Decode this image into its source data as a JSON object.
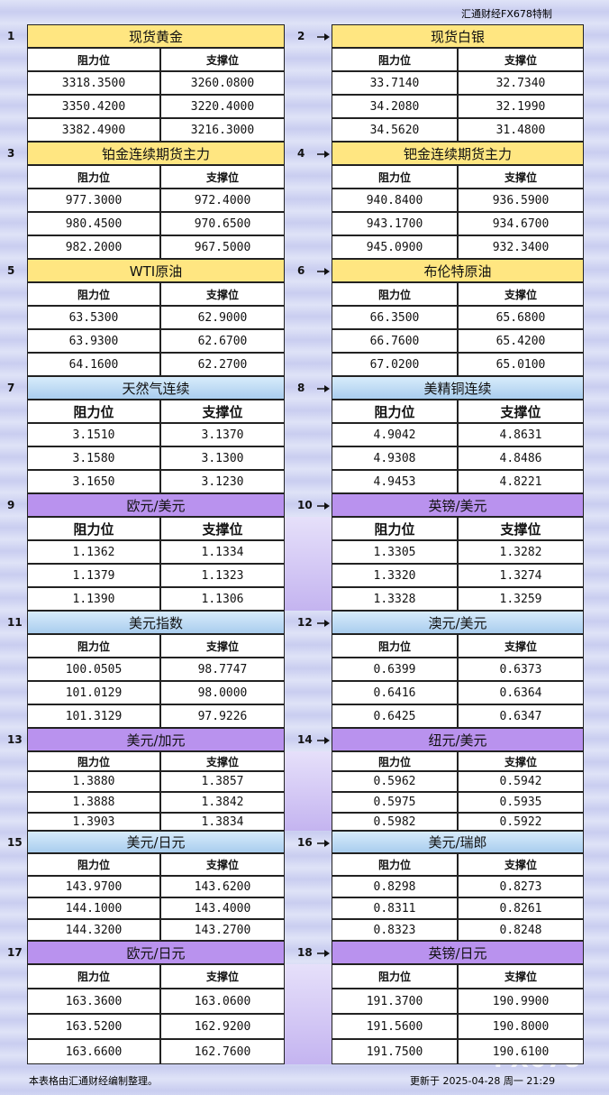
{
  "header": {
    "title": "汇通财经FX678特制"
  },
  "blocks": [
    {
      "number": "1",
      "title": "现货黄金",
      "headers": [
        "阻力位",
        "支撑位"
      ],
      "rows": [
        [
          "3318.3500",
          "3260.0800"
        ],
        [
          "3350.4200",
          "3220.4000"
        ],
        [
          "3382.4900",
          "3216.3000"
        ]
      ]
    },
    {
      "number": "2",
      "title": "现货白银",
      "headers": [
        "阻力位",
        "支撑位"
      ],
      "rows": [
        [
          "33.7140",
          "32.7340"
        ],
        [
          "34.2080",
          "32.1990"
        ],
        [
          "34.5620",
          "31.4800"
        ]
      ]
    },
    {
      "number": "3",
      "title": "铂金连续期货主力",
      "headers": [
        "阻力位",
        "支撑位"
      ],
      "rows": [
        [
          "977.3000",
          "972.4000"
        ],
        [
          "980.4500",
          "970.6500"
        ],
        [
          "982.2000",
          "967.5000"
        ]
      ]
    },
    {
      "number": "4",
      "title": "钯金连续期货主力",
      "headers": [
        "阻力位",
        "支撑位"
      ],
      "rows": [
        [
          "940.8400",
          "936.5900"
        ],
        [
          "943.1700",
          "934.6700"
        ],
        [
          "945.0900",
          "932.3400"
        ]
      ]
    },
    {
      "number": "5",
      "title": "WTI原油",
      "headers": [
        "阻力位",
        "支撑位"
      ],
      "rows": [
        [
          "63.5300",
          "62.9000"
        ],
        [
          "63.9300",
          "62.6700"
        ],
        [
          "64.1600",
          "62.2700"
        ]
      ]
    },
    {
      "number": "6",
      "title": "布伦特原油",
      "headers": [
        "阻力位",
        "支撑位"
      ],
      "rows": [
        [
          "66.3500",
          "65.6800"
        ],
        [
          "66.7600",
          "65.4200"
        ],
        [
          "67.0200",
          "65.0100"
        ]
      ]
    },
    {
      "number": "7",
      "title": "天然气连续",
      "headers": [
        "阻力位",
        "支撑位"
      ],
      "rows": [
        [
          "3.1510",
          "3.1370"
        ],
        [
          "3.1580",
          "3.1300"
        ],
        [
          "3.1650",
          "3.1230"
        ]
      ]
    },
    {
      "number": "8",
      "title": "美精铜连续",
      "headers": [
        "阻力位",
        "支撑位"
      ],
      "rows": [
        [
          "4.9042",
          "4.8631"
        ],
        [
          "4.9308",
          "4.8486"
        ],
        [
          "4.9453",
          "4.8221"
        ]
      ]
    },
    {
      "number": "9",
      "title": "欧元/美元",
      "headers": [
        "阻力位",
        "支撑位"
      ],
      "rows": [
        [
          "1.1362",
          "1.1334"
        ],
        [
          "1.1379",
          "1.1323"
        ],
        [
          "1.1390",
          "1.1306"
        ]
      ]
    },
    {
      "number": "10",
      "title": "英镑/美元",
      "headers": [
        "阻力位",
        "支撑位"
      ],
      "rows": [
        [
          "1.3305",
          "1.3282"
        ],
        [
          "1.3320",
          "1.3274"
        ],
        [
          "1.3328",
          "1.3259"
        ]
      ]
    },
    {
      "number": "11",
      "title": "美元指数",
      "headers": [
        "阻力位",
        "支撑位"
      ],
      "rows": [
        [
          "100.0505",
          "98.7747"
        ],
        [
          "101.0129",
          "98.0000"
        ],
        [
          "101.3129",
          "97.9226"
        ]
      ]
    },
    {
      "number": "12",
      "title": "澳元/美元",
      "headers": [
        "阻力位",
        "支撑位"
      ],
      "rows": [
        [
          "0.6399",
          "0.6373"
        ],
        [
          "0.6416",
          "0.6364"
        ],
        [
          "0.6425",
          "0.6347"
        ]
      ]
    },
    {
      "number": "13",
      "title": "美元/加元",
      "headers": [
        "阻力位",
        "支撑位"
      ],
      "rows": [
        [
          "1.3880",
          "1.3857"
        ],
        [
          "1.3888",
          "1.3842"
        ],
        [
          "1.3903",
          "1.3834"
        ]
      ]
    },
    {
      "number": "14",
      "title": "纽元/美元",
      "headers": [
        "阻力位",
        "支撑位"
      ],
      "rows": [
        [
          "0.5962",
          "0.5942"
        ],
        [
          "0.5975",
          "0.5935"
        ],
        [
          "0.5982",
          "0.5922"
        ]
      ]
    },
    {
      "number": "15",
      "title": "美元/日元",
      "headers": [
        "阻力位",
        "支撑位"
      ],
      "rows": [
        [
          "143.9700",
          "143.6200"
        ],
        [
          "144.1000",
          "143.4000"
        ],
        [
          "144.3200",
          "143.2700"
        ]
      ]
    },
    {
      "number": "16",
      "title": "美元/瑞郎",
      "headers": [
        "阻力位",
        "支撑位"
      ],
      "rows": [
        [
          "0.8298",
          "0.8273"
        ],
        [
          "0.8311",
          "0.8261"
        ],
        [
          "0.8323",
          "0.8248"
        ]
      ]
    },
    {
      "number": "17",
      "title": "欧元/日元",
      "headers": [
        "阻力位",
        "支撑位"
      ],
      "rows": [
        [
          "163.3600",
          "163.0600"
        ],
        [
          "163.5200",
          "162.9200"
        ],
        [
          "163.6600",
          "162.7600"
        ]
      ]
    },
    {
      "number": "18",
      "title": "英镑/日元",
      "headers": [
        "阻力位",
        "支撑位"
      ],
      "rows": [
        [
          "191.3700",
          "190.9900"
        ],
        [
          "191.5600",
          "190.8000"
        ],
        [
          "191.7500",
          "190.6100"
        ]
      ]
    }
  ],
  "footer": {
    "note": "本表格由汇通财经编制整理。",
    "updated": "更新于 2025-04-28 周一 21:29",
    "watermark": "FX678"
  }
}
